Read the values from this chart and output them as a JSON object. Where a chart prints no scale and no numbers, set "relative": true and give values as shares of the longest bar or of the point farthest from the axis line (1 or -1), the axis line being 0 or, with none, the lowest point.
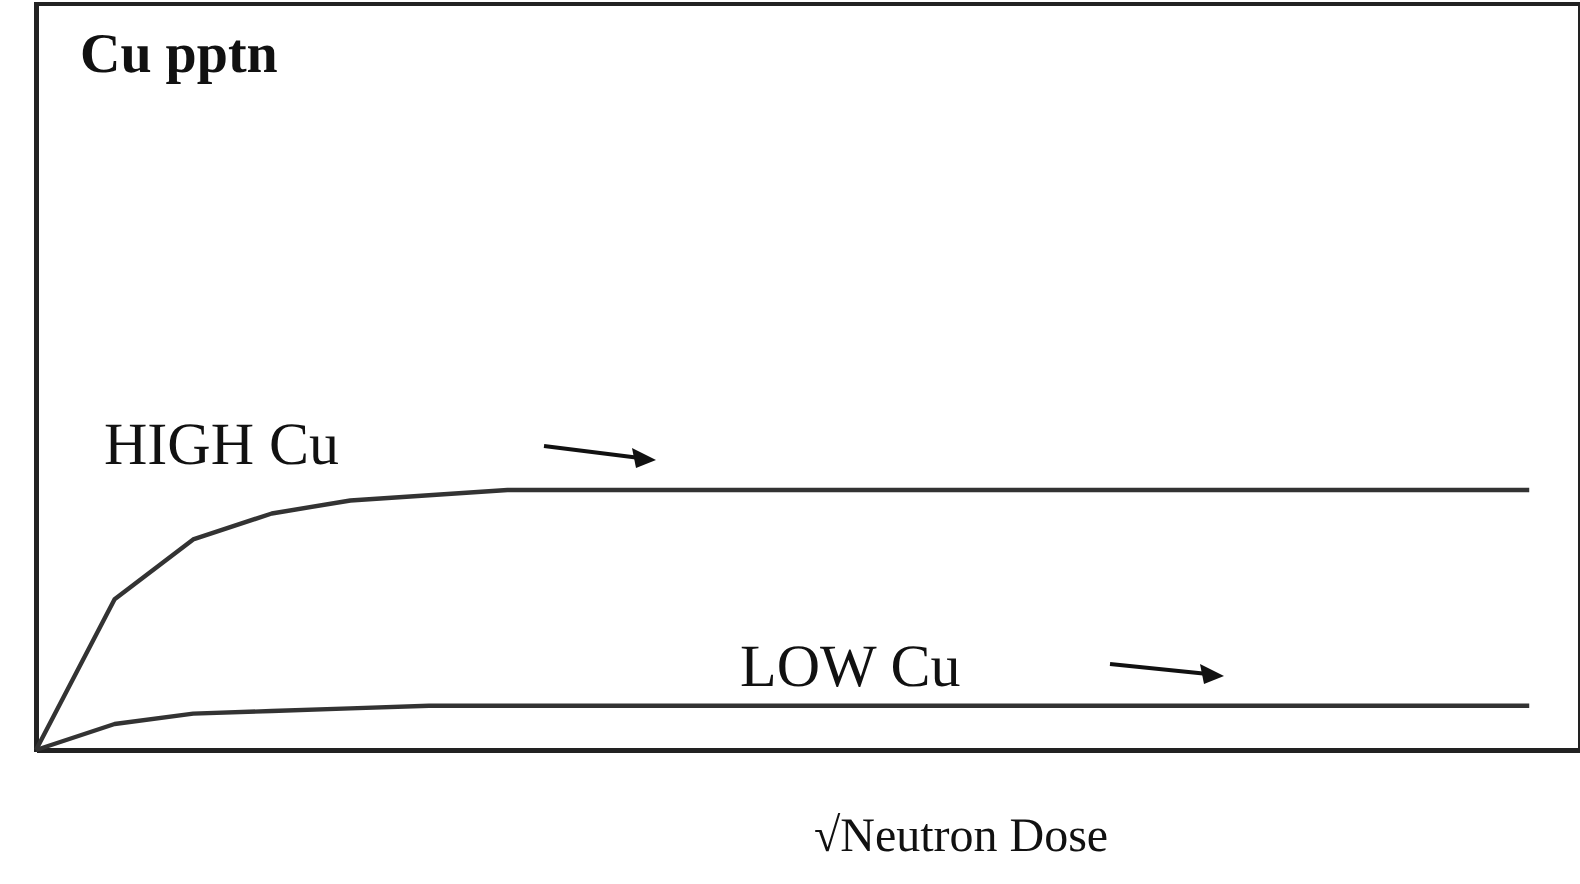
{
  "chart_data": {
    "type": "line",
    "relative": true,
    "xlabel": "√Neutron Dose",
    "tick_labels": false,
    "grid": false,
    "marker": "none",
    "line_style": "solid",
    "categories": [
      null,
      null,
      null,
      null,
      null,
      null,
      null,
      null,
      null,
      null,
      null,
      null,
      null,
      null,
      null,
      null,
      null,
      null,
      null,
      null
    ],
    "series": [
      {
        "color": "#333333",
        "values": [
          0,
          0.58,
          0.81,
          0.91,
          0.96,
          0.98,
          1,
          1,
          1,
          1,
          1,
          1,
          1,
          1,
          1,
          1,
          1,
          1,
          1,
          1
        ]
      },
      {
        "color": "#333333",
        "values": [
          0,
          0.1,
          0.14,
          0.15,
          0.16,
          0.17,
          0.17,
          0.17,
          0.17,
          0.17,
          0.17,
          0.17,
          0.17,
          0.17,
          0.17,
          0.17,
          0.17,
          0.17,
          0.17,
          0.17
        ]
      }
    ],
    "annotations": [
      "Cu pptn",
      "HIGH Cu",
      "LOW Cu"
    ]
  }
}
